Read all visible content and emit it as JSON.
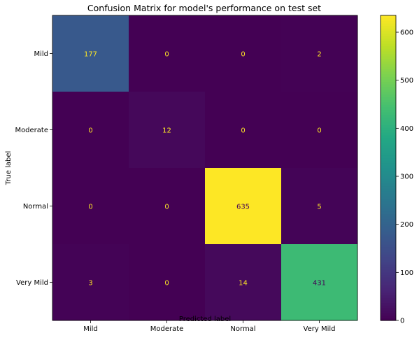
{
  "chart_data": {
    "type": "heatmap",
    "title": "Confusion Matrix for model's performance on test set",
    "xlabel": "Predicted label",
    "ylabel": "True label",
    "x_categories": [
      "Mild",
      "Moderate",
      "Normal",
      "Very Mild"
    ],
    "y_categories": [
      "Mild",
      "Moderate",
      "Normal",
      "Very Mild"
    ],
    "values": [
      [
        177,
        0,
        0,
        2
      ],
      [
        0,
        12,
        0,
        0
      ],
      [
        0,
        0,
        635,
        5
      ],
      [
        3,
        0,
        14,
        431
      ]
    ],
    "colormap": "viridis",
    "colorbar": {
      "range": [
        0,
        635
      ],
      "ticks": [
        0,
        100,
        200,
        300,
        400,
        500,
        600
      ],
      "tick_labels": [
        "0",
        "100",
        "200",
        "300",
        "400",
        "500",
        "600"
      ]
    },
    "annotation_colors": {
      "dark_cell": "#fde725",
      "light_cell": "#440154"
    }
  }
}
